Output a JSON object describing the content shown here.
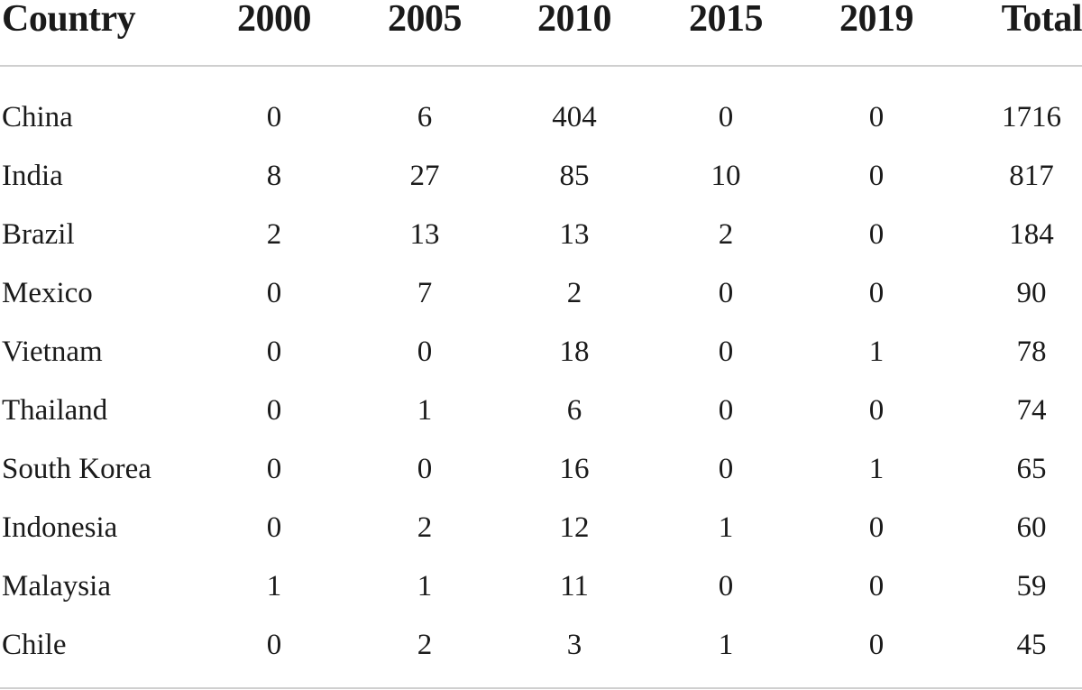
{
  "table": {
    "headers": [
      "Country",
      "2000",
      "2005",
      "2010",
      "2015",
      "2019",
      "Total"
    ],
    "rows": [
      [
        "China",
        "0",
        "6",
        "404",
        "0",
        "0",
        "1716"
      ],
      [
        "India",
        "8",
        "27",
        "85",
        "10",
        "0",
        "817"
      ],
      [
        "Brazil",
        "2",
        "13",
        "13",
        "2",
        "0",
        "184"
      ],
      [
        "Mexico",
        "0",
        "7",
        "2",
        "0",
        "0",
        "90"
      ],
      [
        "Vietnam",
        "0",
        "0",
        "18",
        "0",
        "1",
        "78"
      ],
      [
        "Thailand",
        "0",
        "1",
        "6",
        "0",
        "0",
        "74"
      ],
      [
        "South Korea",
        "0",
        "0",
        "16",
        "0",
        "1",
        "65"
      ],
      [
        "Indonesia",
        "0",
        "2",
        "12",
        "1",
        "0",
        "60"
      ],
      [
        "Malaysia",
        "1",
        "1",
        "11",
        "0",
        "0",
        "59"
      ],
      [
        "Chile",
        "0",
        "2",
        "3",
        "1",
        "0",
        "45"
      ]
    ]
  }
}
